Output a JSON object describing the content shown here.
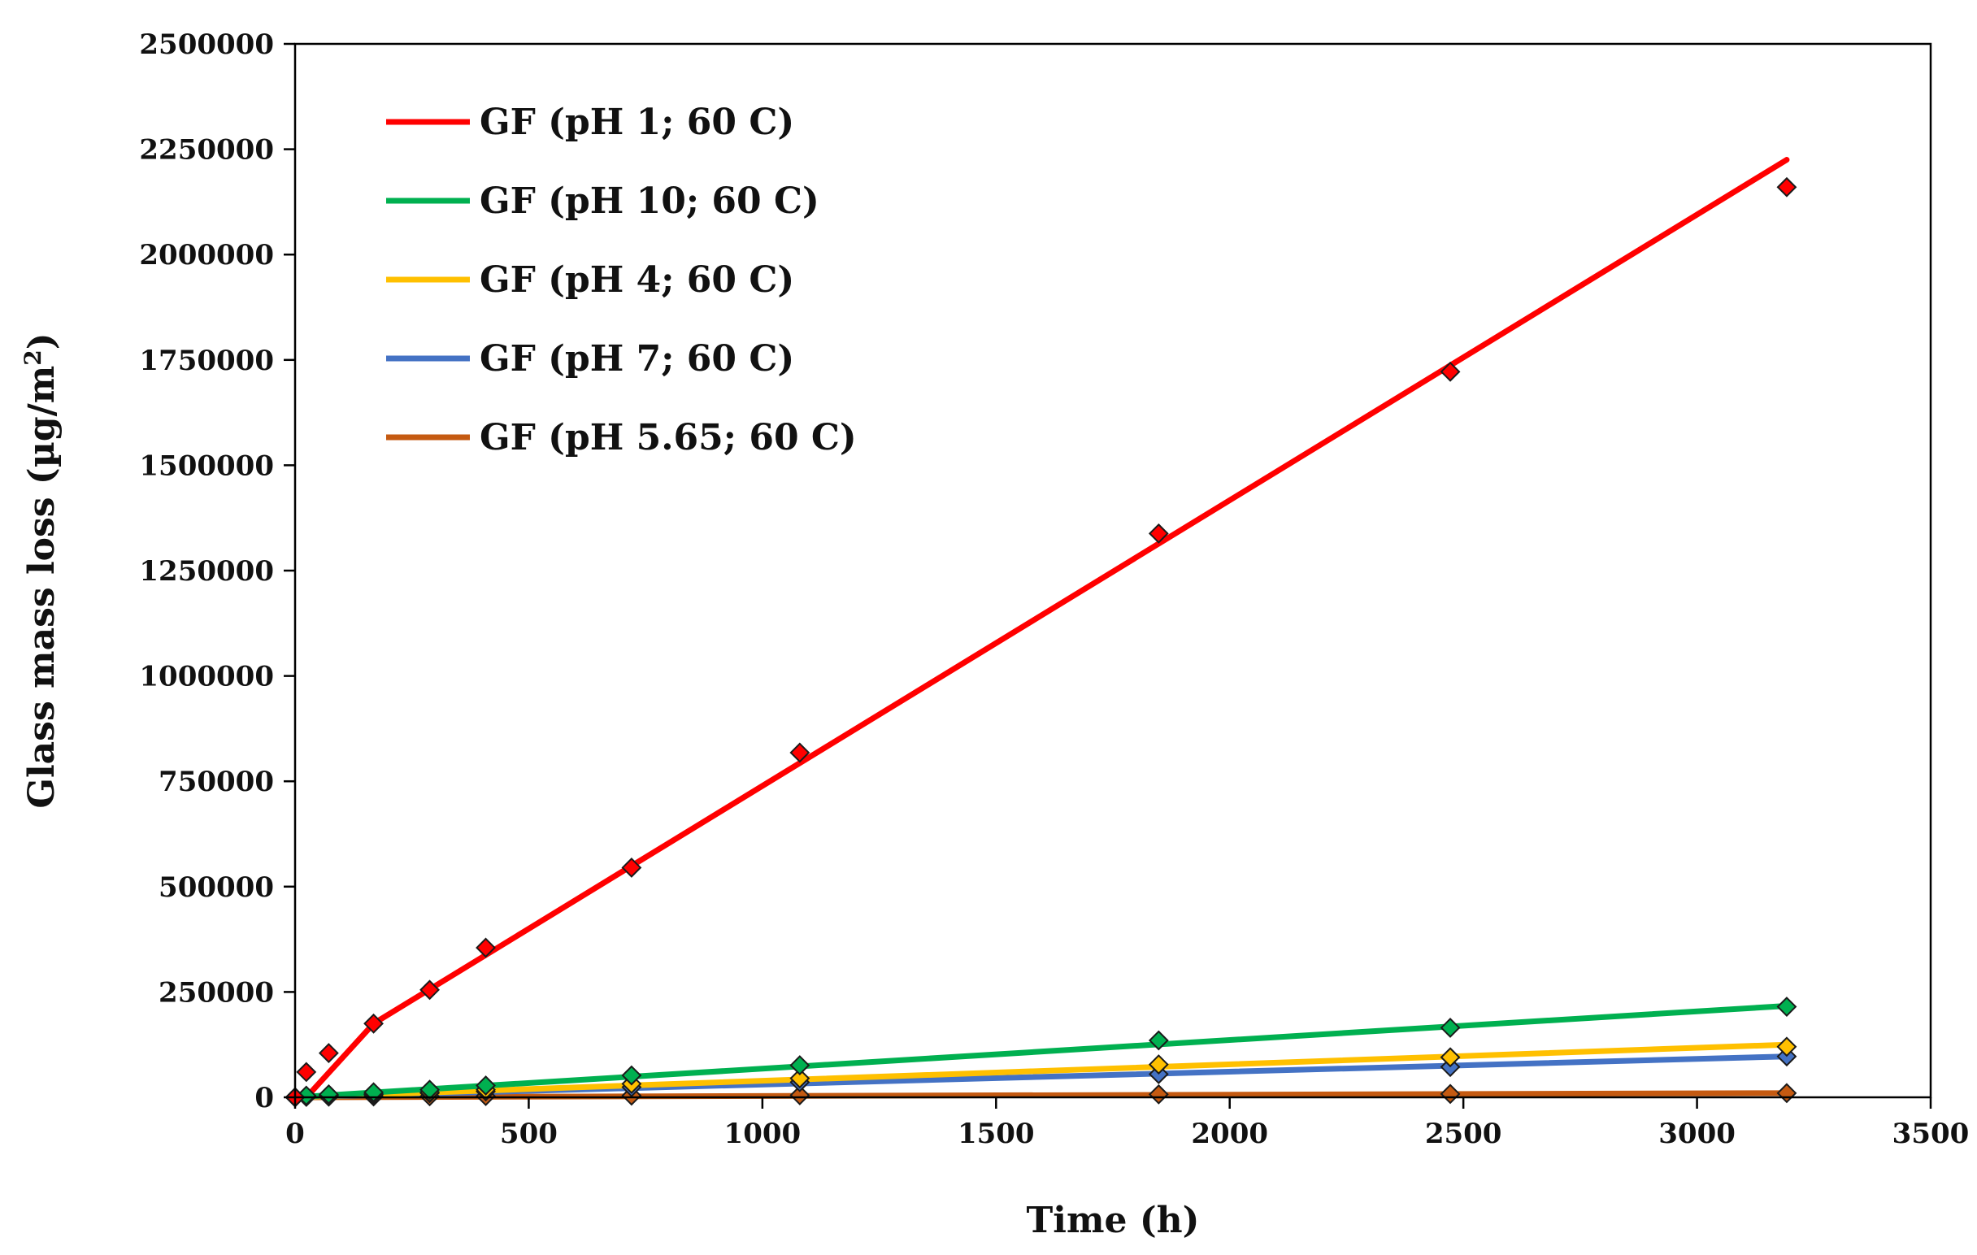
{
  "chart_data": {
    "type": "line",
    "title": "",
    "xlabel": "Time (h)",
    "ylabel": "Glass mass loss (µg/m²)",
    "ylabel_main": "Glass mass loss (µg/m",
    "ylabel_sup": "2",
    "ylabel_tail": ")",
    "xlim": [
      0,
      3500
    ],
    "ylim": [
      0,
      2500000
    ],
    "x_ticks": [
      0,
      500,
      1000,
      1500,
      2000,
      2500,
      3000,
      3500
    ],
    "y_ticks": [
      0,
      250000,
      500000,
      750000,
      1000000,
      1250000,
      1500000,
      1750000,
      2000000,
      2250000,
      2500000
    ],
    "x_tick_labels": [
      "0",
      "500",
      "1000",
      "1500",
      "2000",
      "2500",
      "3000",
      "3500"
    ],
    "y_tick_labels": [
      "0",
      "250000",
      "500000",
      "750000",
      "1000000",
      "1250000",
      "1500000",
      "1750000",
      "2000000",
      "2250000",
      "2500000"
    ],
    "legend_position": "top-left",
    "series": [
      {
        "name": "GF (pH 1; 60 C)",
        "color": "#ff0000",
        "x": [
          0,
          24,
          72,
          168,
          288,
          408,
          720,
          1080,
          1848,
          2472,
          3192
        ],
        "y": [
          0,
          60000,
          105000,
          175000,
          255000,
          355000,
          545000,
          818000,
          1338000,
          1722000,
          2160000
        ],
        "fit": {
          "x": [
            24,
            168,
            3192
          ],
          "y": [
            0,
            175000,
            2225000
          ]
        }
      },
      {
        "name": "GF (pH 10; 60 C)",
        "color": "#00b050",
        "x": [
          0,
          24,
          72,
          168,
          288,
          408,
          720,
          1080,
          1848,
          2472,
          3192
        ],
        "y": [
          0,
          4000,
          7000,
          12000,
          18000,
          28000,
          52000,
          76000,
          135000,
          165000,
          215000
        ],
        "fit": {
          "x": [
            0,
            3192
          ],
          "y": [
            0,
            217000
          ]
        }
      },
      {
        "name": "GF (pH 4; 60 C)",
        "color": "#ffc000",
        "x": [
          0,
          24,
          72,
          168,
          288,
          408,
          720,
          1080,
          1848,
          2472,
          3192
        ],
        "y": [
          0,
          3000,
          5000,
          8000,
          12000,
          18000,
          32000,
          45000,
          78000,
          95000,
          120000
        ],
        "fit": {
          "x": [
            0,
            3192
          ],
          "y": [
            0,
            125000
          ]
        }
      },
      {
        "name": "GF (pH 7; 60 C)",
        "color": "#4472c4",
        "x": [
          0,
          24,
          72,
          168,
          288,
          408,
          720,
          1080,
          1848,
          2472,
          3192
        ],
        "y": [
          0,
          2000,
          4000,
          6000,
          10000,
          14000,
          24000,
          36000,
          55000,
          72000,
          97000
        ],
        "fit": {
          "x": [
            0,
            3192
          ],
          "y": [
            0,
            97000
          ]
        }
      },
      {
        "name": "GF (pH 5.65; 60 C)",
        "color": "#c55a11",
        "x": [
          0,
          24,
          72,
          168,
          288,
          408,
          720,
          1080,
          1848,
          2472,
          3192
        ],
        "y": [
          0,
          1000,
          1500,
          2000,
          2500,
          3000,
          4000,
          5000,
          7000,
          8000,
          10000
        ],
        "fit": {
          "x": [
            0,
            3192
          ],
          "y": [
            0,
            10000
          ]
        }
      }
    ]
  }
}
